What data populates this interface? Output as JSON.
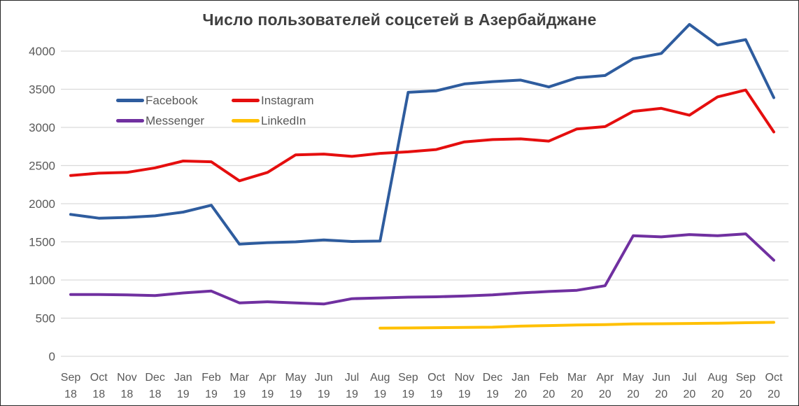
{
  "chart_data": {
    "type": "line",
    "title": "Число пользователей соцсетей в Азербайджане",
    "categories": [
      "Sep 18",
      "Oct 18",
      "Nov 18",
      "Dec 18",
      "Jan 19",
      "Feb 19",
      "Mar 19",
      "Apr 19",
      "May 19",
      "Jun 19",
      "Jul 19",
      "Aug 19",
      "Sep 19",
      "Oct 19",
      "Nov 19",
      "Dec 19",
      "Jan 20",
      "Feb 20",
      "Mar 20",
      "Apr 20",
      "May 20",
      "Jun 20",
      "Jul 20",
      "Aug 20",
      "Sep 20",
      "Oct 20"
    ],
    "series": [
      {
        "name": "Facebook",
        "color": "#2E5C9E",
        "values": [
          1860,
          1810,
          1820,
          1840,
          1890,
          1980,
          1470,
          1490,
          1500,
          1525,
          1505,
          1510,
          3460,
          3480,
          3570,
          3600,
          3620,
          3530,
          3650,
          3680,
          3900,
          3970,
          4350,
          4080,
          4150,
          3390
        ]
      },
      {
        "name": "Instagram",
        "color": "#E50E0E",
        "values": [
          2370,
          2400,
          2410,
          2470,
          2560,
          2550,
          2300,
          2410,
          2640,
          2650,
          2620,
          2660,
          2680,
          2710,
          2810,
          2840,
          2850,
          2820,
          2980,
          3010,
          3210,
          3250,
          3160,
          3400,
          3490,
          2940
        ]
      },
      {
        "name": "Messenger",
        "color": "#7030A0",
        "values": [
          810,
          810,
          805,
          795,
          830,
          855,
          700,
          715,
          700,
          685,
          755,
          765,
          775,
          780,
          790,
          805,
          830,
          850,
          865,
          925,
          1580,
          1565,
          1595,
          1580,
          1605,
          1260
        ]
      },
      {
        "name": "LinkedIn",
        "color": "#FFC000",
        "values": [
          null,
          null,
          null,
          null,
          null,
          null,
          null,
          null,
          null,
          null,
          null,
          370,
          372,
          375,
          378,
          382,
          395,
          403,
          410,
          416,
          424,
          427,
          430,
          434,
          440,
          445
        ]
      }
    ],
    "xlabel": "",
    "ylabel": "",
    "ylim": [
      0,
      4500
    ],
    "yticks": [
      0,
      500,
      1000,
      1500,
      2000,
      2500,
      3000,
      3500,
      4000
    ],
    "grid": true,
    "legend_position": "top-left-inset",
    "line_width": 4
  },
  "colors": {
    "grid": "#D9D9D9",
    "axis_text": "#595959",
    "title_text": "#404040",
    "background": "#FFFFFF",
    "border": "#262626"
  }
}
